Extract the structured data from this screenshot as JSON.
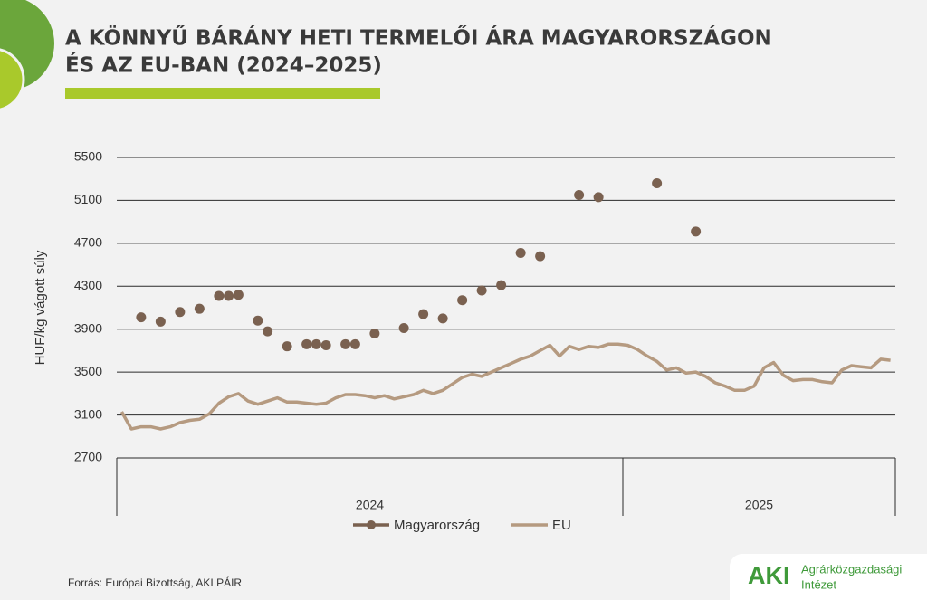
{
  "chart_data": {
    "type": "line",
    "title": [
      "A KÖNNYŰ BÁRÁNY HETI TERMELŐI ÁRA MAGYARORSZÁGON",
      "ÉS AZ EU-BAN (2024–2025)"
    ],
    "y_label": "HUF/kg vágott súly",
    "categories": [
      null,
      null,
      null,
      null,
      null,
      null,
      null,
      null,
      null,
      null,
      null,
      null,
      null,
      null,
      null,
      null,
      null,
      null,
      null,
      null,
      null,
      null,
      null,
      null,
      null,
      null,
      null,
      null,
      null,
      null,
      null,
      null,
      null,
      null,
      null,
      null,
      null,
      null,
      null,
      null,
      null,
      null,
      null,
      null,
      null,
      null,
      null,
      null,
      null,
      null,
      null,
      null,
      null,
      null,
      null,
      null,
      null,
      null,
      null,
      null,
      null,
      null,
      null,
      null,
      null,
      null,
      null,
      null,
      null,
      null,
      null,
      null,
      null,
      null,
      null,
      null,
      null,
      null,
      null,
      null
    ],
    "groups": [
      {
        "label": "2024",
        "span": 52
      },
      {
        "label": "2025",
        "span": 28
      }
    ],
    "series": [
      {
        "name": "Magyarország",
        "color": "#7a6150",
        "mode": "markers",
        "values": [
          null,
          null,
          4010,
          null,
          3970,
          null,
          4060,
          null,
          4090,
          null,
          4210,
          4210,
          4220,
          null,
          3980,
          3880,
          null,
          3740,
          null,
          3760,
          3760,
          3750,
          null,
          3760,
          3760,
          null,
          3860,
          null,
          null,
          3910,
          null,
          4040,
          null,
          4000,
          null,
          4170,
          null,
          4260,
          null,
          4310,
          null,
          4610,
          null,
          4580,
          null,
          null,
          null,
          5150,
          null,
          5130,
          null,
          null,
          null,
          null,
          null,
          5260,
          null,
          null,
          null,
          4810,
          null,
          null,
          null,
          null,
          null,
          null,
          null,
          null,
          null,
          null,
          null,
          null,
          null,
          null,
          null,
          null,
          null,
          null,
          null,
          null
        ]
      },
      {
        "name": "EU",
        "color": "#b59a80",
        "mode": "line",
        "values": [
          3130,
          2970,
          2990,
          2990,
          2970,
          2990,
          3030,
          3050,
          3060,
          3110,
          3210,
          3270,
          3300,
          3230,
          3200,
          3230,
          3260,
          3220,
          3220,
          3210,
          3200,
          3210,
          3260,
          3290,
          3290,
          3280,
          3260,
          3280,
          3250,
          3270,
          3290,
          3330,
          3300,
          3330,
          3390,
          3450,
          3480,
          3460,
          3500,
          3540,
          3580,
          3620,
          3650,
          3700,
          3750,
          3650,
          3740,
          3710,
          3740,
          3730,
          3760,
          3760,
          3750,
          3710,
          3650,
          3600,
          3520,
          3540,
          3490,
          3500,
          3460,
          3400,
          3370,
          3330,
          3330,
          3370,
          3540,
          3590,
          3470,
          3420,
          3430,
          3430,
          3410,
          3400,
          3520,
          3560,
          3550,
          3540,
          3620,
          3610
        ]
      }
    ],
    "ylim": [
      2700,
      5500
    ],
    "yticks": [
      2700,
      3100,
      3500,
      3900,
      4300,
      4700,
      5100,
      5500
    ],
    "grid": true,
    "source": "Forrás: Európai Bizottság, AKI PÁIR"
  },
  "logo": {
    "mark": "AKI",
    "line1": "Agrárközgazdasági",
    "line2": "Intézet"
  }
}
